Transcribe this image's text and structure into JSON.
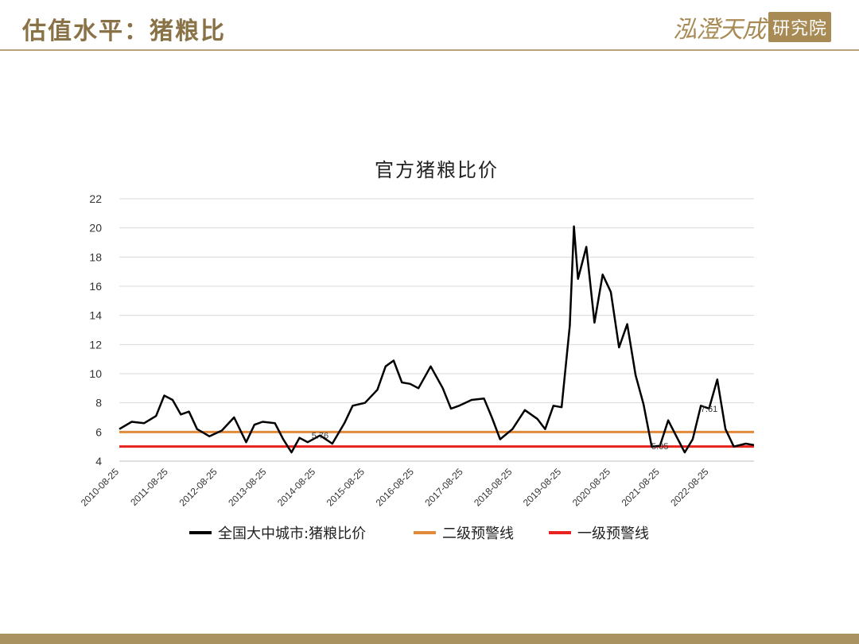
{
  "header": {
    "title": "估值水平：猪粮比"
  },
  "logo": {
    "script_text": "泓澄天成",
    "box_text": "研究院"
  },
  "colors": {
    "gold": "#8a7247",
    "series": "#000000",
    "warn2": "#e08a3c",
    "warn1": "#e8231f"
  },
  "chart_data": {
    "type": "line",
    "title": "官方猪粮比价",
    "xlabel": "",
    "ylabel": "",
    "ylim": [
      4,
      22
    ],
    "yticks": [
      4,
      6,
      8,
      10,
      12,
      14,
      16,
      18,
      20,
      22
    ],
    "xlim": [
      "2010-08-25",
      "2023-07-25"
    ],
    "x_tick_labels": [
      "2010-08-25",
      "2011-08-25",
      "2012-08-25",
      "2013-08-25",
      "2014-08-25",
      "2015-08-25",
      "2016-08-25",
      "2017-08-25",
      "2018-08-25",
      "2019-08-25",
      "2020-08-25",
      "2021-08-25",
      "2022-08-25"
    ],
    "grid": true,
    "legend_position": "bottom",
    "series": [
      {
        "name": "全国大中城市:猪粮比价",
        "x": [
          "2010-08-25",
          "2010-11-25",
          "2011-02-25",
          "2011-05-25",
          "2011-07-25",
          "2011-09-25",
          "2011-11-25",
          "2012-01-25",
          "2012-03-25",
          "2012-06-25",
          "2012-09-25",
          "2012-12-25",
          "2013-03-25",
          "2013-05-25",
          "2013-07-25",
          "2013-10-25",
          "2013-12-25",
          "2014-02-25",
          "2014-04-25",
          "2014-06-25",
          "2014-09-25",
          "2014-12-25",
          "2015-03-25",
          "2015-05-25",
          "2015-08-25",
          "2015-11-25",
          "2016-01-25",
          "2016-03-25",
          "2016-05-25",
          "2016-07-25",
          "2016-09-25",
          "2016-12-25",
          "2017-03-25",
          "2017-05-25",
          "2017-07-25",
          "2017-10-25",
          "2018-01-25",
          "2018-03-25",
          "2018-05-25",
          "2018-08-25",
          "2018-11-25",
          "2019-02-25",
          "2019-04-25",
          "2019-06-25",
          "2019-08-25",
          "2019-10-25",
          "2019-11-25",
          "2019-12-25",
          "2020-02-25",
          "2020-04-25",
          "2020-06-25",
          "2020-08-25",
          "2020-10-25",
          "2020-12-25",
          "2021-02-25",
          "2021-04-25",
          "2021-06-25",
          "2021-08-25",
          "2021-10-25",
          "2021-12-25",
          "2022-02-25",
          "2022-04-25",
          "2022-06-25",
          "2022-08-25",
          "2022-10-25",
          "2022-12-25",
          "2023-02-25",
          "2023-05-25",
          "2023-07-25"
        ],
        "values": [
          6.2,
          6.7,
          6.6,
          7.1,
          8.5,
          8.2,
          7.2,
          7.4,
          6.2,
          5.7,
          6.1,
          7.0,
          5.3,
          6.5,
          6.7,
          6.6,
          5.5,
          4.6,
          5.6,
          5.3,
          5.76,
          5.2,
          6.6,
          7.8,
          8.0,
          8.9,
          10.5,
          10.9,
          9.4,
          9.3,
          9.0,
          10.5,
          9.0,
          7.6,
          7.8,
          8.2,
          8.3,
          7.0,
          5.5,
          6.2,
          7.5,
          6.9,
          6.2,
          7.8,
          7.7,
          13.3,
          20.1,
          16.5,
          18.7,
          13.5,
          16.8,
          15.6,
          11.8,
          13.4,
          9.9,
          7.9,
          5.0,
          5.05,
          6.8,
          5.7,
          4.6,
          5.5,
          7.8,
          7.61,
          9.6,
          6.2,
          5.0,
          5.2,
          5.1
        ]
      },
      {
        "name": "二级预警线",
        "value": 6
      },
      {
        "name": "一级预警线",
        "value": 5
      }
    ],
    "annotations": [
      {
        "x": "2014-09-25",
        "y": 5.76,
        "text": "5.76"
      },
      {
        "x": "2021-08-25",
        "y": 5.05,
        "text": "5.05"
      },
      {
        "x": "2022-08-25",
        "y": 7.61,
        "text": "7.61"
      }
    ]
  }
}
